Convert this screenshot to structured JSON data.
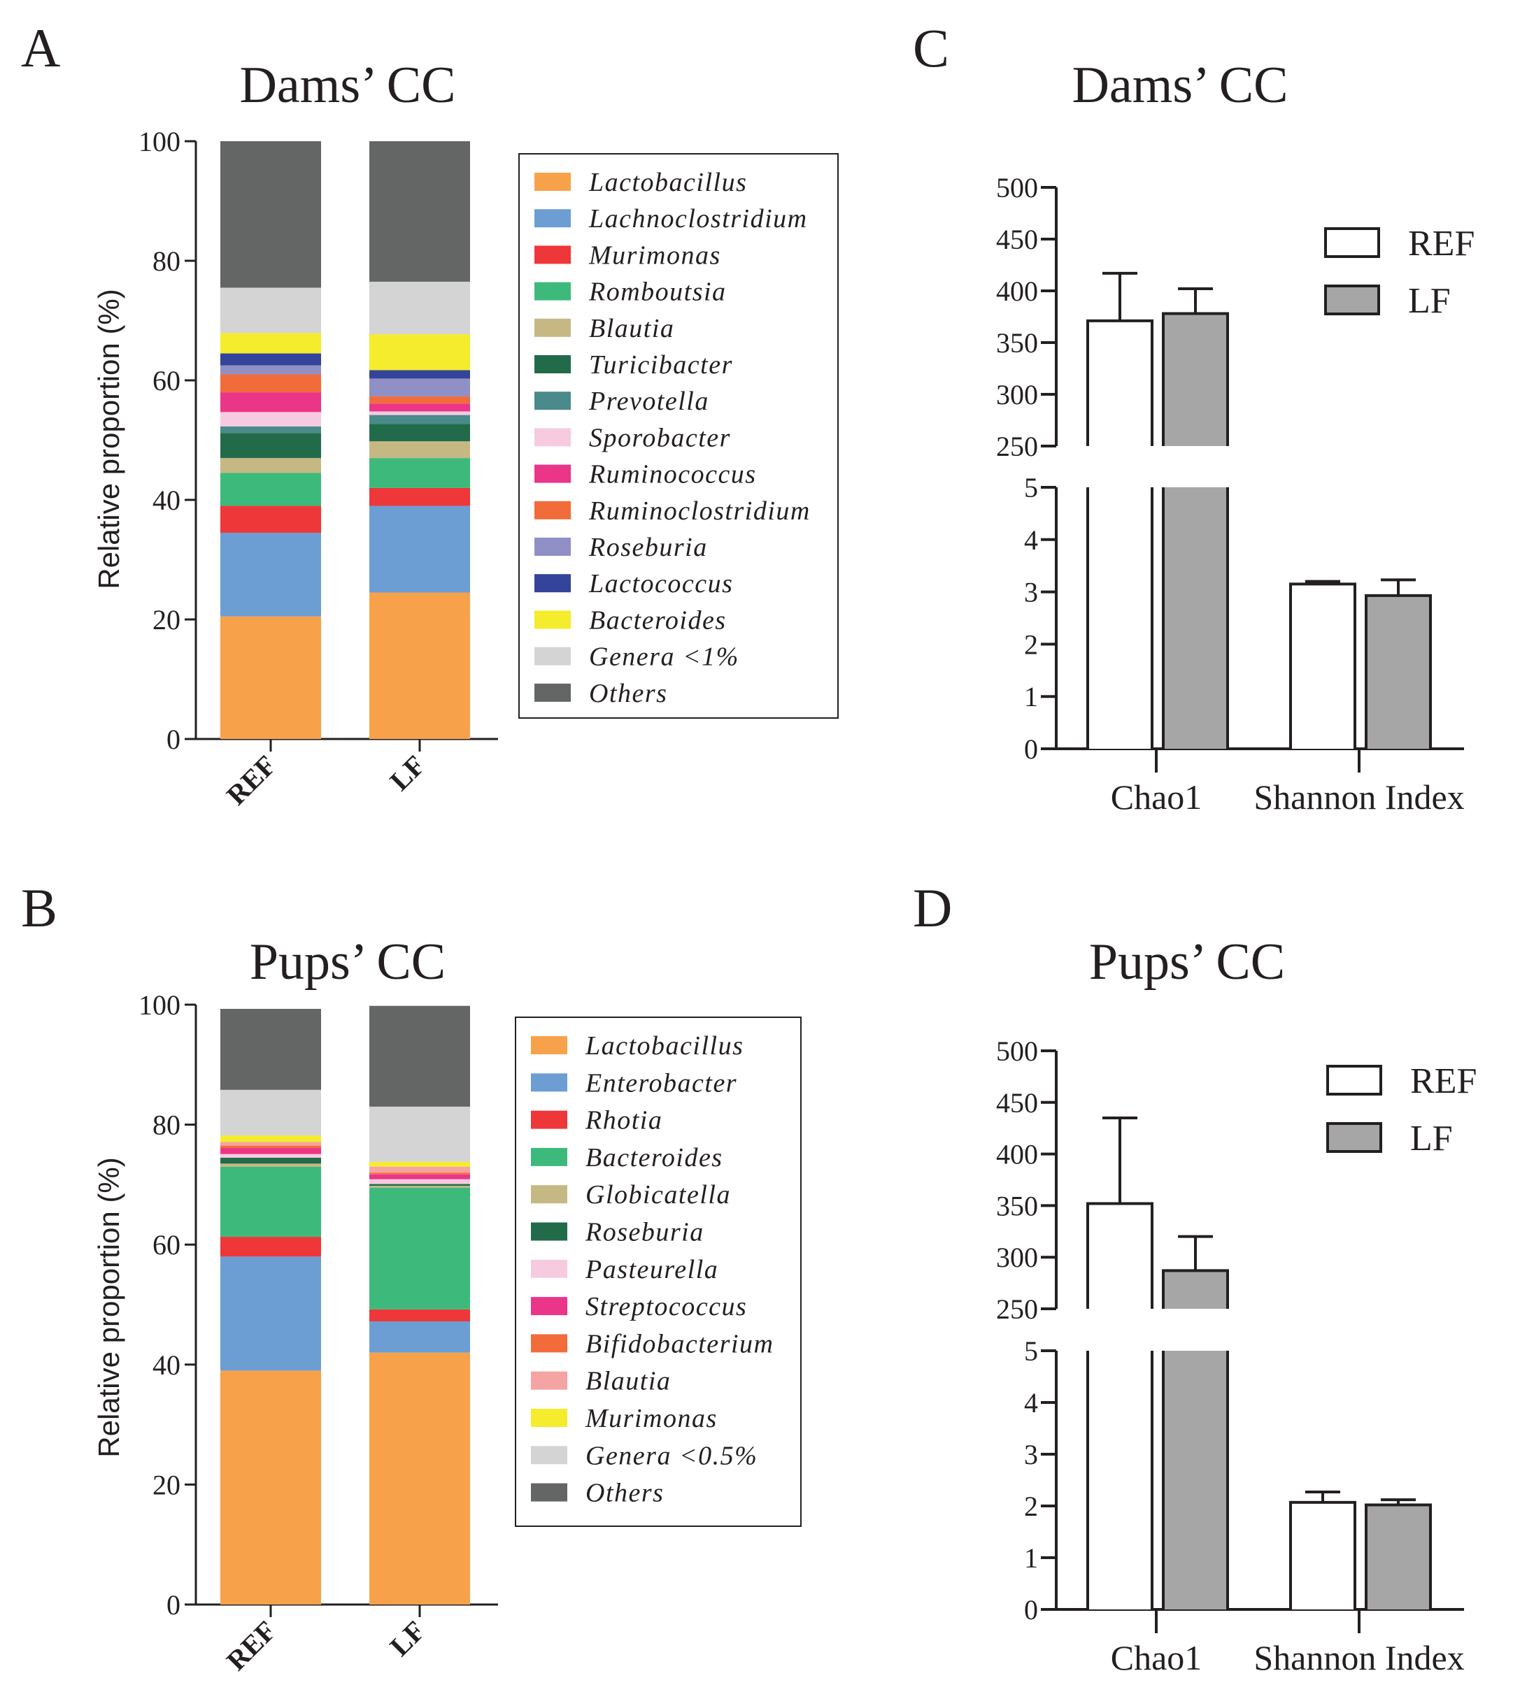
{
  "colors": {
    "Lactobacillus": "#f7a24b",
    "Lachnoclostridium": "#6c9ed4",
    "Enterobacter": "#6c9ed4",
    "Murimonas": "#ee3738",
    "Rhotia": "#ee3738",
    "Romboutsia": "#3dba7b",
    "Bacteroides_pups": "#3dba7b",
    "Blautia": "#c5b882",
    "Globicatella": "#c5b882",
    "Turicibacter": "#226b4a",
    "Roseburia_pups": "#226b4a",
    "Prevotella": "#4a8a8a",
    "Sporobacter": "#f6cbe0",
    "Pasteurella": "#f6cbe0",
    "Ruminococcus": "#ea3589",
    "Streptococcus": "#ea3589",
    "Ruminoclostridium": "#f26b3a",
    "Bifidobacterium": "#f26b3a",
    "Roseburia": "#9090c6",
    "Blautia_pups": "#f5a3a3",
    "Lactococcus": "#33449a",
    "Bacteroides": "#f4ec2c",
    "Murimonas_pups": "#f4ec2c",
    "Genera": "#d4d4d4",
    "Others": "#646665",
    "REF_bar": "#ffffff",
    "LF_bar": "#a6a6a6"
  },
  "chart_data": [
    {
      "panel": "A",
      "type": "bar",
      "stacked": true,
      "title": "Dams’ CC",
      "xlabel": "",
      "ylabel": "Relative proportion (%)",
      "ylim": [
        0,
        100
      ],
      "yticks": [
        "0",
        "20",
        "40",
        "60",
        "80",
        "100"
      ],
      "categories": [
        "REF",
        "LF"
      ],
      "legend_position": "right",
      "series": [
        {
          "name": "Lactobacillus",
          "key": "Lactobacillus",
          "values": [
            20.5,
            24.5
          ]
        },
        {
          "name": "Lachnoclostridium",
          "key": "Lachnoclostridium",
          "values": [
            14.0,
            14.5
          ]
        },
        {
          "name": "Murimonas",
          "key": "Murimonas",
          "values": [
            4.5,
            3.0
          ]
        },
        {
          "name": "Romboutsia",
          "key": "Romboutsia",
          "values": [
            5.5,
            5.0
          ]
        },
        {
          "name": "Blautia",
          "key": "Blautia",
          "values": [
            2.5,
            2.8
          ]
        },
        {
          "name": "Turicibacter",
          "key": "Turicibacter",
          "values": [
            4.2,
            2.9
          ]
        },
        {
          "name": "Prevotella",
          "key": "Prevotella",
          "values": [
            1.1,
            1.5
          ]
        },
        {
          "name": "Sporobacter",
          "key": "Sporobacter",
          "values": [
            2.4,
            0.6
          ]
        },
        {
          "name": "Ruminococcus",
          "key": "Ruminococcus",
          "values": [
            3.3,
            1.3
          ]
        },
        {
          "name": "Ruminoclostridium",
          "key": "Ruminoclostridium",
          "values": [
            3.0,
            1.2
          ]
        },
        {
          "name": "Roseburia",
          "key": "Roseburia",
          "values": [
            1.5,
            3.0
          ]
        },
        {
          "name": "Lactococcus",
          "key": "Lactococcus",
          "values": [
            2.0,
            1.4
          ]
        },
        {
          "name": "Bacteroides",
          "key": "Bacteroides",
          "values": [
            3.4,
            6.0
          ]
        },
        {
          "name": "Genera <1%",
          "key": "Genera",
          "values": [
            7.6,
            8.8
          ]
        },
        {
          "name": "Others",
          "key": "Others",
          "values": [
            24.5,
            23.5
          ]
        }
      ]
    },
    {
      "panel": "B",
      "type": "bar",
      "stacked": true,
      "title": "Pups’ CC",
      "xlabel": "",
      "ylabel": "Relative proportion (%)",
      "ylim": [
        0,
        100
      ],
      "yticks": [
        "0",
        "20",
        "40",
        "60",
        "80",
        "100"
      ],
      "categories": [
        "REF",
        "LF"
      ],
      "legend_position": "right",
      "series": [
        {
          "name": "Lactobacillus",
          "key": "Lactobacillus",
          "values": [
            39.0,
            42.0
          ]
        },
        {
          "name": "Enterobacter",
          "key": "Enterobacter",
          "values": [
            19.0,
            5.2
          ]
        },
        {
          "name": "Rhotia",
          "key": "Rhotia",
          "values": [
            3.3,
            2.0
          ]
        },
        {
          "name": "Bacteroides",
          "key": "Bacteroides_pups",
          "values": [
            11.7,
            20.3
          ]
        },
        {
          "name": "Globicatella",
          "key": "Globicatella",
          "values": [
            0.5,
            0.3
          ]
        },
        {
          "name": "Roseburia",
          "key": "Roseburia_pups",
          "values": [
            1.0,
            0.3
          ]
        },
        {
          "name": "Pasteurella",
          "key": "Pasteurella",
          "values": [
            0.6,
            0.8
          ]
        },
        {
          "name": "Streptococcus",
          "key": "Streptococcus",
          "values": [
            1.0,
            0.8
          ]
        },
        {
          "name": "Bifidobacterium",
          "key": "Bifidobacterium",
          "values": [
            0.4,
            0.3
          ]
        },
        {
          "name": "Blautia",
          "key": "Blautia_pups",
          "values": [
            0.6,
            1.0
          ]
        },
        {
          "name": "Murimonas",
          "key": "Murimonas_pups",
          "values": [
            1.1,
            0.8
          ]
        },
        {
          "name": "Genera <0.5%",
          "key": "Genera",
          "values": [
            7.6,
            9.2
          ]
        },
        {
          "name": "Others",
          "key": "Others",
          "values": [
            13.5,
            16.8
          ]
        }
      ]
    },
    {
      "panel": "C",
      "type": "bar",
      "title": "Dams’ CC",
      "xlabel": "",
      "ylabel": "",
      "categories": [
        "Chao1",
        "Shannon Index"
      ],
      "broken_axis": true,
      "upper_ylim": [
        250,
        500
      ],
      "upper_ticks": [
        "250",
        "300",
        "350",
        "400",
        "450",
        "500"
      ],
      "lower_ylim": [
        0,
        5
      ],
      "lower_ticks": [
        "0",
        "1",
        "2",
        "3",
        "4",
        "5"
      ],
      "legend_position": "top-right",
      "series": [
        {
          "name": "REF",
          "key": "REF_bar",
          "values": [
            371,
            3.15
          ],
          "errors": [
            46,
            0.05
          ]
        },
        {
          "name": "LF",
          "key": "LF_bar",
          "values": [
            378,
            2.93
          ],
          "errors": [
            24,
            0.3
          ]
        }
      ]
    },
    {
      "panel": "D",
      "type": "bar",
      "title": "Pups’ CC",
      "xlabel": "",
      "ylabel": "",
      "categories": [
        "Chao1",
        "Shannon Index"
      ],
      "broken_axis": true,
      "upper_ylim": [
        250,
        500
      ],
      "upper_ticks": [
        "250",
        "300",
        "350",
        "400",
        "450",
        "500"
      ],
      "lower_ylim": [
        0,
        5
      ],
      "lower_ticks": [
        "0",
        "1",
        "2",
        "3",
        "4",
        "5"
      ],
      "legend_position": "top-right",
      "series": [
        {
          "name": "REF",
          "key": "REF_bar",
          "values": [
            352,
            2.07
          ],
          "errors": [
            83,
            0.2
          ]
        },
        {
          "name": "LF",
          "key": "LF_bar",
          "values": [
            287,
            2.02
          ],
          "errors": [
            33,
            0.1
          ]
        }
      ]
    }
  ]
}
